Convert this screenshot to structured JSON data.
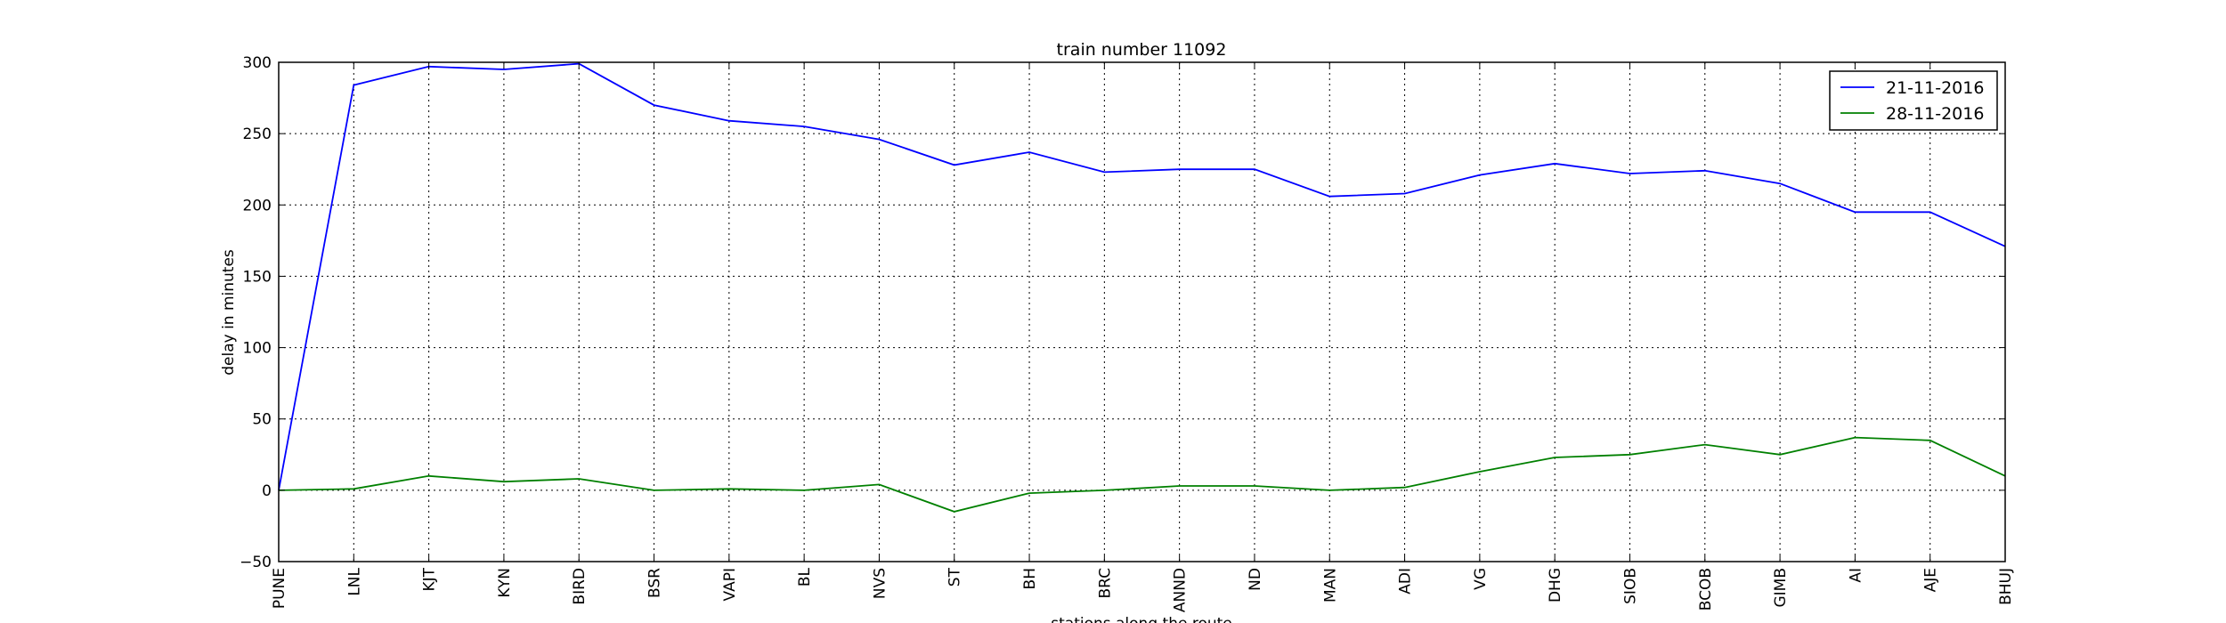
{
  "chart_data": {
    "type": "line",
    "title": "train number 11092",
    "xlabel": "stations along the route",
    "ylabel": "delay in minutes",
    "categories": [
      "PUNE",
      "LNL",
      "KJT",
      "KYN",
      "BIRD",
      "BSR",
      "VAPI",
      "BL",
      "NVS",
      "ST",
      "BH",
      "BRC",
      "ANND",
      "ND",
      "MAN",
      "ADI",
      "VG",
      "DHG",
      "SIOB",
      "BCOB",
      "GIMB",
      "AI",
      "AJE",
      "BHUJ"
    ],
    "ylim": [
      -50,
      300
    ],
    "yticks": [
      -50,
      0,
      50,
      100,
      150,
      200,
      250,
      300
    ],
    "grid": true,
    "legend_position": "top-right",
    "series": [
      {
        "name": "21-11-2016",
        "color": "#0000ff",
        "values": [
          0,
          284,
          297,
          295,
          299,
          270,
          259,
          255,
          246,
          228,
          237,
          223,
          225,
          225,
          206,
          208,
          221,
          229,
          222,
          224,
          215,
          195,
          195,
          171
        ]
      },
      {
        "name": "28-11-2016",
        "color": "#008000",
        "values": [
          0,
          1,
          10,
          6,
          8,
          0,
          1,
          0,
          4,
          -15,
          -2,
          0,
          3,
          3,
          0,
          2,
          13,
          23,
          25,
          32,
          25,
          37,
          35,
          10
        ]
      }
    ]
  }
}
